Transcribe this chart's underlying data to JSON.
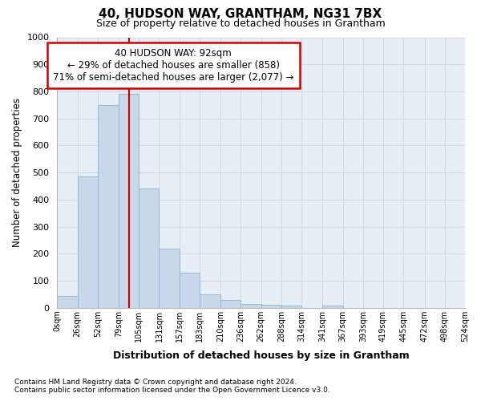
{
  "title": "40, HUDSON WAY, GRANTHAM, NG31 7BX",
  "subtitle": "Size of property relative to detached houses in Grantham",
  "xlabel": "Distribution of detached houses by size in Grantham",
  "ylabel": "Number of detached properties",
  "bin_edges": [
    0,
    26,
    52,
    79,
    105,
    131,
    157,
    183,
    210,
    236,
    262,
    288,
    314,
    341,
    367,
    393,
    419,
    445,
    472,
    498,
    524
  ],
  "bar_heights": [
    45,
    485,
    750,
    790,
    440,
    220,
    130,
    50,
    28,
    15,
    10,
    7,
    0,
    7,
    0,
    0,
    0,
    0,
    0,
    0
  ],
  "bar_color": "#c8d8ea",
  "bar_edge_color": "#8ab4d4",
  "grid_color": "#d0d8e8",
  "vline_x": 92,
  "vline_color": "#cc0000",
  "annotation_text": "40 HUDSON WAY: 92sqm\n← 29% of detached houses are smaller (858)\n71% of semi-detached houses are larger (2,077) →",
  "annotation_box_edgecolor": "#cc0000",
  "ylim": [
    0,
    1000
  ],
  "yticks": [
    0,
    100,
    200,
    300,
    400,
    500,
    600,
    700,
    800,
    900,
    1000
  ],
  "tick_labels": [
    "0sqm",
    "26sqm",
    "52sqm",
    "79sqm",
    "105sqm",
    "131sqm",
    "157sqm",
    "183sqm",
    "210sqm",
    "236sqm",
    "262sqm",
    "288sqm",
    "314sqm",
    "341sqm",
    "367sqm",
    "393sqm",
    "419sqm",
    "445sqm",
    "472sqm",
    "498sqm",
    "524sqm"
  ],
  "footnote1": "Contains HM Land Registry data © Crown copyright and database right 2024.",
  "footnote2": "Contains public sector information licensed under the Open Government Licence v3.0.",
  "plot_bg_color": "#e8eef5",
  "fig_bg_color": "#ffffff"
}
